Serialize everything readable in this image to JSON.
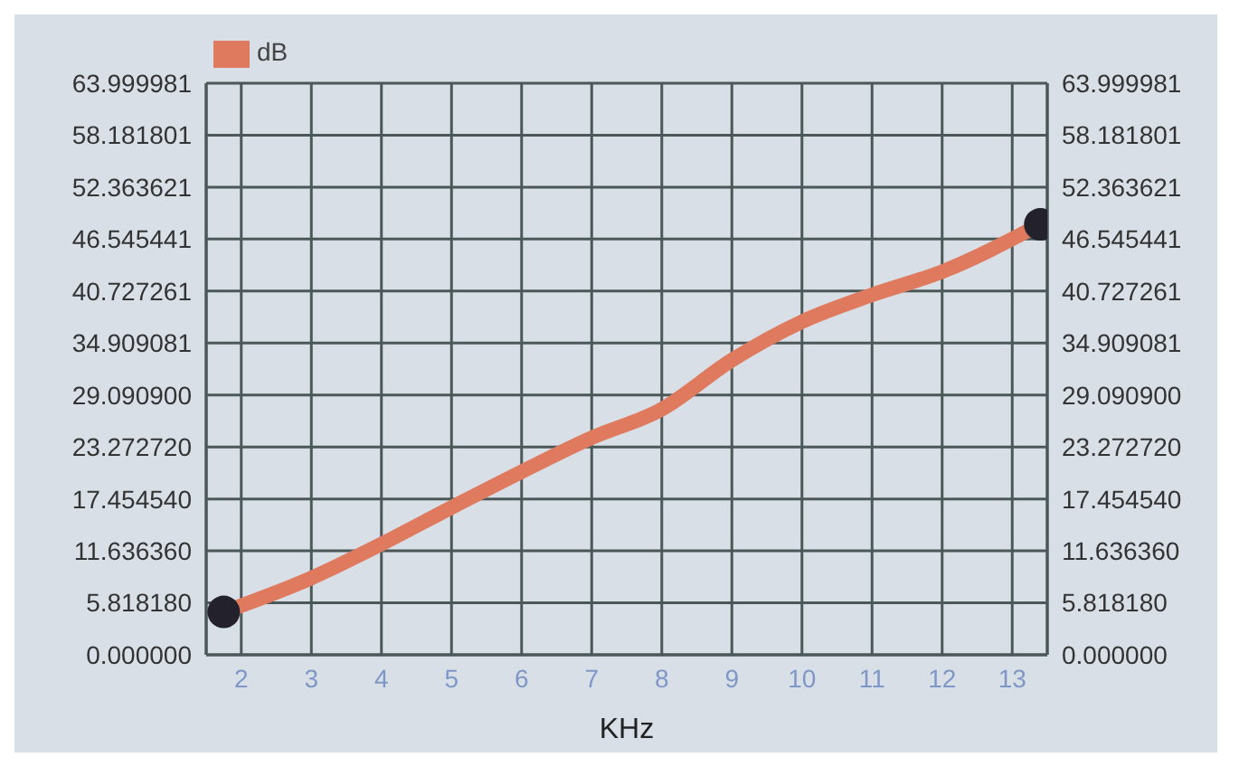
{
  "chart_data": {
    "type": "line",
    "xlabel": "KHz",
    "x": [
      1.75,
      3,
      4,
      5,
      6,
      7,
      8,
      9,
      10,
      11,
      12,
      13.4
    ],
    "series": [
      {
        "name": "dB",
        "color": "#e07a5f",
        "marker": "none",
        "values": [
          4.8,
          8.6,
          12.4,
          16.5,
          20.5,
          24.3,
          27.5,
          33,
          37.3,
          40.3,
          42.9,
          48.2
        ]
      },
      {
        "type": "scatter",
        "color": "#23222c",
        "marker": "circle",
        "x": [
          1.75,
          13.4
        ],
        "values": [
          4.8,
          48.2
        ]
      }
    ],
    "xlim": [
      1.5,
      13.5
    ],
    "xticks": [
      2,
      3,
      4,
      5,
      6,
      7,
      8,
      9,
      10,
      11,
      12,
      13
    ],
    "ylim": [
      0,
      63.999981
    ],
    "yticks": [
      {
        "value": 0,
        "label": "0.000000"
      },
      {
        "value": 5.81818,
        "label": "5.818180"
      },
      {
        "value": 11.63636,
        "label": "11.636360"
      },
      {
        "value": 17.45454,
        "label": "17.454540"
      },
      {
        "value": 23.27272,
        "label": "23.272720"
      },
      {
        "value": 29.0909,
        "label": "29.090900"
      },
      34.909081,
      40.727261,
      46.545441,
      52.363621,
      58.181801,
      63.999981
    ],
    "y2lim": [
      0,
      63.999981
    ],
    "y2ticks": [
      {
        "value": 0,
        "label": "0.000000"
      },
      {
        "value": 5.81818,
        "label": "5.818180"
      },
      {
        "value": 11.63636,
        "label": "11.636360"
      },
      {
        "value": 17.45454,
        "label": "17.454540"
      },
      {
        "value": 23.27272,
        "label": "23.272720"
      },
      {
        "value": 29.0909,
        "label": "29.090900"
      },
      34.909081,
      40.727261,
      46.545441,
      52.363621,
      58.181801,
      63.999981
    ],
    "grid": true,
    "legend": "top left",
    "line_style": "solid"
  }
}
